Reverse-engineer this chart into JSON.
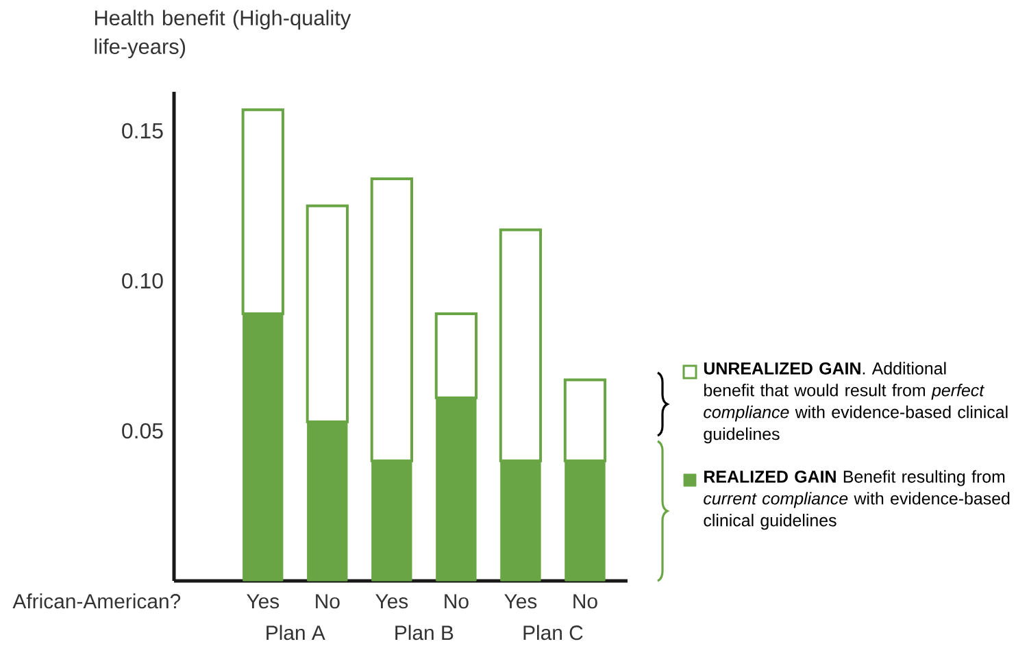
{
  "chart_data": {
    "type": "bar",
    "stacked": true,
    "xlabel": "African-American?",
    "ylabel": "Health benefit (High-quality life-years)",
    "categories": [
      "Yes",
      "No",
      "Yes",
      "No",
      "Yes",
      "No"
    ],
    "annotations": [
      "Plan A",
      "Plan B",
      "Plan C"
    ],
    "series": [
      {
        "name": "**REALIZED GAIN** Benefit resulting from *current compliance* with evidence-based clinical guidelines",
        "color": "#6aa545",
        "values": [
          0.089,
          0.053,
          0.04,
          0.061,
          0.04,
          0.04
        ]
      },
      {
        "name": "**UNREALIZED GAIN**. Additional benefit that would result from *perfect compliance* with evidence-based clinical guidelines",
        "color": "#ffffff",
        "values": [
          0.068,
          0.072,
          0.094,
          0.028,
          0.077,
          0.027
        ]
      }
    ],
    "ylim": [
      0,
      0.163
    ],
    "yticks": [
      {
        "value": 0.05,
        "label": "0.05"
      },
      {
        "value": 0.1,
        "label": "0.10"
      },
      {
        "value": 0.15,
        "label": "0.15"
      }
    ],
    "legend": "right"
  }
}
